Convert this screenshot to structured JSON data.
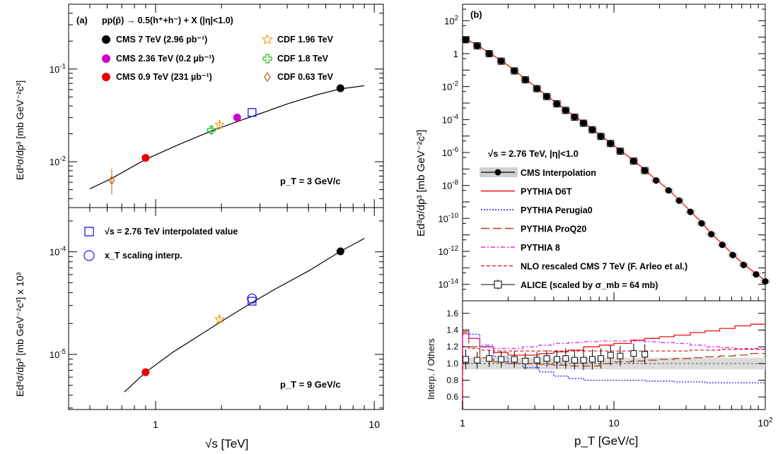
{
  "panel_a": {
    "label": "(a)",
    "header": "pp(p̄) → 0.5(h⁺+h⁻) + X (|η|<1.0)",
    "xlabel": "√s [TeV]",
    "ylabel_top": "Ed³σ/dp³ [mb GeV⁻²c³]",
    "ylabel_bottom": "Ed³σ/dp³ [mb GeV⁻²c³] x 10³",
    "xticks": [
      {
        "v": 1,
        "t": "1"
      },
      {
        "v": 10,
        "t": "10"
      }
    ],
    "yticks_top": [
      {
        "v": 0.01,
        "b": "10",
        "e": "-2"
      },
      {
        "v": 0.1,
        "b": "10",
        "e": "-1"
      }
    ],
    "yticks_bottom": [
      {
        "v": 1e-05,
        "b": "10",
        "e": "-5"
      },
      {
        "v": 0.0001,
        "b": "10",
        "e": "-4"
      }
    ],
    "top_annotation": "p_T = 3 GeV/c",
    "bottom_annotation": "p_T = 9 GeV/c",
    "legend_top": [
      {
        "label": "CMS 7 TeV (2.96 pb⁻¹)",
        "marker": "circle",
        "color": "#000000"
      },
      {
        "label": "CMS 2.36 TeV (0.2 µb⁻¹)",
        "marker": "circle",
        "color": "#cc00cc"
      },
      {
        "label": "CMS 0.9 TeV (231 µb⁻¹)",
        "marker": "circle",
        "color": "#ee0000"
      },
      {
        "label": "CDF 1.96 TeV",
        "marker": "star",
        "color": "#e8a020"
      },
      {
        "label": "CDF 1.8 TeV",
        "marker": "cross",
        "color": "#22bb22"
      },
      {
        "label": "CDF 0.63 TeV",
        "marker": "diamond",
        "color": "#c06010"
      }
    ],
    "legend_bottom": [
      {
        "label": "√s = 2.76 TeV interpolated value",
        "marker": "square",
        "color": "#1a1aee"
      },
      {
        "label": "x_T scaling interp.",
        "marker": "open-circle",
        "color": "#1a1aee"
      }
    ]
  },
  "panel_b": {
    "label": "(b)",
    "xlabel": "p_T [GeV/c]",
    "ylabel": "Ed³σ/dp³ [mb GeV⁻²c³]",
    "ratio_ylabel": "Interp. / Others",
    "xticks": [
      {
        "v": 1,
        "t": "1"
      },
      {
        "v": 10,
        "t": "10"
      },
      {
        "v": 100,
        "t": "10",
        "e": "2"
      }
    ],
    "yticks": [
      {
        "v": 1e-14,
        "b": "10",
        "e": "-14"
      },
      {
        "v": 1e-12,
        "b": "10",
        "e": "-12"
      },
      {
        "v": 1e-10,
        "b": "10",
        "e": "-10"
      },
      {
        "v": 1e-08,
        "b": "10",
        "e": "-8"
      },
      {
        "v": 1e-06,
        "b": "10",
        "e": "-6"
      },
      {
        "v": 0.0001,
        "b": "10",
        "e": "-4"
      },
      {
        "v": 0.01,
        "b": "10",
        "e": "-2"
      },
      {
        "v": 1,
        "b": "1",
        "e": ""
      },
      {
        "v": 100,
        "b": "10",
        "e": "2"
      }
    ],
    "ratio_yticks": [
      "0.6",
      "0.8",
      "1.0",
      "1.2",
      "1.4",
      "1.6"
    ],
    "legend_title": "√s = 2.76 TeV,   |η|<1.0",
    "legend": [
      {
        "label": "CMS Interpolation",
        "style": "cms",
        "color": "#000000"
      },
      {
        "label": "PYTHIA D6T",
        "style": "solid",
        "color": "#ee1111"
      },
      {
        "label": "PYTHIA Perugia0",
        "style": "dot",
        "color": "#1a1aee"
      },
      {
        "label": "PYTHIA ProQ20",
        "style": "longdash",
        "color": "#b04010"
      },
      {
        "label": "PYTHIA 8",
        "style": "dashdot",
        "color": "#ee22ee"
      },
      {
        "label": "NLO rescaled CMS 7 TeV (F. Arleo et al.)",
        "style": "dash",
        "color": "#dd2233"
      },
      {
        "label": "ALICE (scaled by σ_mb = 64 mb)",
        "style": "alice",
        "color": "#000000"
      }
    ]
  },
  "chart_data": [
    {
      "type": "scatter",
      "panel": "a-top",
      "xlabel": "√s [TeV]",
      "ylabel": "Ed³σ/dp³ [mb GeV⁻²c³]",
      "xscale": "log",
      "yscale": "log",
      "xlim": [
        0.4,
        11
      ],
      "ylim": [
        0.0032,
        0.5
      ],
      "annotation": "p_T = 3 GeV/c",
      "series": [
        {
          "name": "CMS 7 TeV (2.96 pb⁻¹)",
          "x": [
            7.0
          ],
          "y": [
            0.062
          ]
        },
        {
          "name": "CMS 2.36 TeV (0.2 µb⁻¹)",
          "x": [
            2.36
          ],
          "y": [
            0.03
          ]
        },
        {
          "name": "CMS 0.9 TeV (231 µb⁻¹)",
          "x": [
            0.9
          ],
          "y": [
            0.011
          ]
        },
        {
          "name": "CDF 1.96 TeV",
          "x": [
            1.96
          ],
          "y": [
            0.025
          ]
        },
        {
          "name": "CDF 1.8 TeV",
          "x": [
            1.8
          ],
          "y": [
            0.022
          ]
        },
        {
          "name": "CDF 0.63 TeV",
          "x": [
            0.63
          ],
          "y": [
            0.0063
          ]
        },
        {
          "name": "√s = 2.76 TeV interpolated value",
          "x": [
            2.76
          ],
          "y": [
            0.034
          ]
        }
      ],
      "fit_curve": {
        "x": [
          0.5,
          0.63,
          0.9,
          1.3,
          1.8,
          2.4,
          3.0,
          4.0,
          5.5,
          7.0,
          9.0
        ],
        "y": [
          0.0051,
          0.0066,
          0.0106,
          0.0156,
          0.0215,
          0.0275,
          0.033,
          0.042,
          0.053,
          0.061,
          0.066
        ]
      }
    },
    {
      "type": "scatter",
      "panel": "a-bottom",
      "xlabel": "√s [TeV]",
      "ylabel": "Ed³σ/dp³ [mb GeV⁻²c³] x 10³",
      "xscale": "log",
      "yscale": "log",
      "xlim": [
        0.4,
        11
      ],
      "ylim": [
        2.9e-06,
        0.00027
      ],
      "annotation": "p_T = 9 GeV/c",
      "series": [
        {
          "name": "CMS 7 TeV (2.96 pb⁻¹)",
          "x": [
            7.0
          ],
          "y": [
            0.000101
          ]
        },
        {
          "name": "CMS 0.9 TeV (231 µb⁻¹)",
          "x": [
            0.9
          ],
          "y": [
            6.7e-06
          ]
        },
        {
          "name": "CDF 1.96 TeV",
          "x": [
            1.96
          ],
          "y": [
            2.2e-05
          ]
        },
        {
          "name": "√s = 2.76 TeV interpolated value",
          "x": [
            2.76
          ],
          "y": [
            3.3e-05
          ]
        },
        {
          "name": "x_T scaling interp.",
          "x": [
            2.76
          ],
          "y": [
            3.5e-05
          ]
        }
      ],
      "fit_curve": {
        "x": [
          0.72,
          0.9,
          1.2,
          1.6,
          2.0,
          2.76,
          3.5,
          5.0,
          7.0,
          9.0
        ],
        "y": [
          4.3e-06,
          6.7e-06,
          1.05e-05,
          1.55e-05,
          2.1e-05,
          3.2e-05,
          4.3e-05,
          6.5e-05,
          0.000101,
          0.000135
        ]
      }
    },
    {
      "type": "line",
      "panel": "b-main",
      "xlabel": "p_T [GeV/c]",
      "ylabel": "Ed³σ/dp³ [mb GeV⁻²c³]",
      "xscale": "log",
      "yscale": "log",
      "xlim": [
        1,
        100
      ],
      "ylim": [
        1e-15,
        1000
      ],
      "series": [
        {
          "name": "CMS Interpolation",
          "x": [
            1.05,
            1.25,
            1.5,
            1.8,
            2.2,
            2.6,
            3.1,
            3.6,
            4.2,
            4.8,
            5.5,
            6.3,
            7.2,
            8.2,
            9.5,
            11,
            13.5,
            16,
            19,
            23,
            27,
            32,
            38,
            44,
            52,
            61,
            72,
            87,
            100
          ],
          "y": [
            7,
            3,
            1.0,
            0.35,
            0.09,
            0.026,
            0.0075,
            0.0025,
            0.0009,
            0.00036,
            0.00014,
            6e-05,
            2.4e-05,
            9.5e-06,
            3.5e-06,
            1.2e-06,
            3e-07,
            8e-08,
            2e-08,
            5e-09,
            1.2e-09,
            2.5e-10,
            5e-11,
            1.1e-11,
            2.5e-12,
            6e-13,
            1.5e-13,
            4e-14,
            1.5e-14
          ]
        },
        {
          "name": "ALICE (scaled by σ_mb = 64 mb)",
          "x": [
            1.05,
            1.25,
            1.5,
            1.8,
            2.2,
            2.6,
            3.1,
            3.6,
            4.2,
            4.8,
            5.5,
            6.3,
            7.2,
            8.2,
            9.5,
            11,
            13.5,
            16
          ],
          "y": [
            7,
            3,
            1.0,
            0.35,
            0.09,
            0.026,
            0.0075,
            0.0025,
            0.0009,
            0.00036,
            0.00014,
            6e-05,
            2.4e-05,
            9.5e-06,
            3.5e-06,
            1.2e-06,
            3e-07,
            8e-08
          ]
        }
      ]
    },
    {
      "type": "line",
      "panel": "b-ratio",
      "xlabel": "p_T [GeV/c]",
      "ylabel": "Interp. / Others",
      "xscale": "log",
      "xlim": [
        1,
        100
      ],
      "ylim": [
        0.45,
        1.75
      ],
      "x_edges": [
        1,
        1.1,
        1.3,
        1.6,
        2.0,
        2.5,
        3.2,
        4,
        5,
        6.3,
        8,
        10,
        13,
        16,
        20,
        25,
        32,
        40,
        50,
        63,
        80,
        100
      ],
      "series": [
        {
          "name": "PYTHIA D6T",
          "y": [
            1.38,
            1.3,
            1.2,
            1.13,
            1.1,
            1.1,
            1.12,
            1.14,
            1.16,
            1.2,
            1.22,
            1.24,
            1.28,
            1.3,
            1.32,
            1.34,
            1.37,
            1.39,
            1.42,
            1.45,
            1.47
          ]
        },
        {
          "name": "PYTHIA Perugia0",
          "y": [
            1.4,
            1.35,
            1.2,
            1.08,
            1.0,
            0.95,
            0.9,
            0.85,
            0.82,
            0.8,
            0.8,
            0.8,
            0.8,
            0.79,
            0.79,
            0.78,
            0.78,
            0.77,
            0.77,
            0.77,
            0.77
          ]
        },
        {
          "name": "PYTHIA ProQ20",
          "y": [
            1.36,
            1.2,
            1.07,
            1.02,
            1.0,
            1.0,
            0.99,
            0.98,
            0.97,
            0.97,
            1.0,
            1.02,
            1.03,
            1.04,
            1.05,
            1.06,
            1.07,
            1.08,
            1.09,
            1.1,
            1.12
          ]
        },
        {
          "name": "PYTHIA 8",
          "y": [
            1.35,
            1.3,
            1.22,
            1.18,
            1.18,
            1.2,
            1.22,
            1.24,
            1.25,
            1.26,
            1.27,
            1.27,
            1.27,
            1.26,
            1.25,
            1.24,
            1.22,
            1.2,
            1.19,
            1.18,
            1.18
          ]
        },
        {
          "name": "NLO rescaled CMS 7 TeV (F. Arleo et al.)",
          "y": [
            1.2,
            1.18,
            1.16,
            1.15,
            1.15,
            1.15,
            1.15,
            1.15,
            1.15,
            1.15,
            1.15,
            1.15,
            1.15,
            1.15,
            1.15,
            1.15,
            1.16,
            1.16,
            1.17,
            1.17,
            1.17
          ]
        },
        {
          "name": "ALICE (scaled by σ_mb = 64 mb)",
          "x": [
            1.05,
            1.25,
            1.5,
            1.8,
            2.2,
            2.6,
            3.1,
            3.6,
            4.2,
            4.8,
            5.5,
            6.3,
            7.2,
            8.2,
            9.5,
            11,
            13.5,
            16
          ],
          "y": [
            1.05,
            1.04,
            1.06,
            1.05,
            1.05,
            1.03,
            1.04,
            1.06,
            1.05,
            1.06,
            1.04,
            1.04,
            1.05,
            1.06,
            1.1,
            1.09,
            1.12,
            1.11
          ],
          "err": [
            0.12,
            0.1,
            0.1,
            0.1,
            0.1,
            0.1,
            0.1,
            0.1,
            0.11,
            0.12,
            0.11,
            0.12,
            0.12,
            0.12,
            0.12,
            0.12,
            0.12,
            0.12
          ]
        }
      ],
      "band": {
        "low": 0.93,
        "high": 1.07
      }
    }
  ]
}
